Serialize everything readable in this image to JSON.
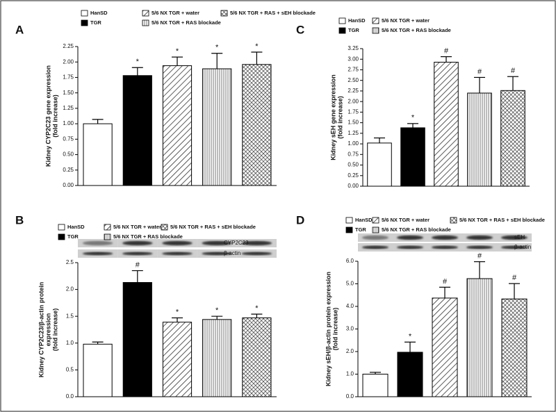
{
  "chart_data": [
    {
      "type": "bar",
      "panel": "A",
      "ylabel": [
        "Kidney CYP2C23 gene expression",
        "(fold increase)"
      ],
      "ylim": [
        0,
        2.25
      ],
      "yticks": [
        {
          "value": 0,
          "label": "0.00"
        },
        {
          "value": 0.25,
          "label": "0.25"
        },
        {
          "value": 0.5,
          "label": "0.50"
        },
        {
          "value": 0.75,
          "label": "0.75"
        },
        {
          "value": 1,
          "label": "1.00"
        },
        {
          "value": 1.25,
          "label": "1.25"
        },
        {
          "value": 1.5,
          "label": "1.50"
        },
        {
          "value": 1.75,
          "label": "1.75"
        },
        {
          "value": 2,
          "label": "2.00"
        },
        {
          "value": 2.25,
          "label": "2.25"
        }
      ],
      "series": [
        {
          "name": "HanSD",
          "pattern": "none",
          "values": [
            1.0
          ],
          "errors": [
            0.07
          ]
        },
        {
          "name": "TGR",
          "pattern": "solid",
          "values": [
            1.78
          ],
          "errors": [
            0.13
          ],
          "annotation": "*"
        },
        {
          "name": "5/6 NX TGR + water",
          "pattern": "diagonal",
          "values": [
            1.94
          ],
          "errors": [
            0.14
          ],
          "annotation": "*"
        },
        {
          "name": "5/6 NX TGR + RAS blockade",
          "pattern": "vertical",
          "values": [
            1.89
          ],
          "errors": [
            0.25
          ],
          "annotation": "*"
        },
        {
          "name": "5/6 NX TGR + RAS + sEH blockade",
          "pattern": "crosshatch",
          "values": [
            1.96
          ],
          "errors": [
            0.2
          ],
          "annotation": "*"
        }
      ]
    },
    {
      "type": "bar",
      "panel": "B",
      "ylabel": [
        "Kidney CYP2C23/β-actin protein",
        "expression",
        "(fold increase)"
      ],
      "blot_labels": [
        "CYP2C23",
        "β-actin"
      ],
      "ylim": [
        0,
        2.5
      ],
      "yticks": [
        {
          "value": 0,
          "label": "0.0"
        },
        {
          "value": 0.5,
          "label": "0.5"
        },
        {
          "value": 1,
          "label": "1.0"
        },
        {
          "value": 1.5,
          "label": "1.5"
        },
        {
          "value": 2,
          "label": "2.0"
        },
        {
          "value": 2.5,
          "label": "2.5"
        }
      ],
      "series": [
        {
          "name": "HanSD",
          "pattern": "none",
          "values": [
            0.98
          ],
          "errors": [
            0.04
          ]
        },
        {
          "name": "TGR",
          "pattern": "solid",
          "values": [
            2.13
          ],
          "errors": [
            0.22
          ],
          "annotation": "#"
        },
        {
          "name": "5/6 NX TGR + water",
          "pattern": "diagonal",
          "values": [
            1.39
          ],
          "errors": [
            0.08
          ],
          "annotation": "*"
        },
        {
          "name": "5/6 NX TGR + RAS blockade",
          "pattern": "vertical",
          "values": [
            1.44
          ],
          "errors": [
            0.06
          ],
          "annotation": "*"
        },
        {
          "name": "5/6 NX TGR + RAS + sEH blockade",
          "pattern": "crosshatch",
          "values": [
            1.47
          ],
          "errors": [
            0.07
          ],
          "annotation": "*"
        }
      ]
    },
    {
      "type": "bar",
      "panel": "C",
      "ylabel": [
        "Kidney sEH gene expression",
        "(fold increase)"
      ],
      "ylim": [
        0,
        3.25
      ],
      "yticks": [
        {
          "value": 0,
          "label": "0.00"
        },
        {
          "value": 0.25,
          "label": "0.25"
        },
        {
          "value": 0.5,
          "label": "0.50"
        },
        {
          "value": 0.75,
          "label": "0.75"
        },
        {
          "value": 1,
          "label": "1.00"
        },
        {
          "value": 1.25,
          "label": "1.25"
        },
        {
          "value": 1.5,
          "label": "1.50"
        },
        {
          "value": 1.75,
          "label": "1.75"
        },
        {
          "value": 2,
          "label": "2.00"
        },
        {
          "value": 2.25,
          "label": "2.25"
        },
        {
          "value": 2.5,
          "label": "2.50"
        },
        {
          "value": 2.75,
          "label": "2.75"
        },
        {
          "value": 3,
          "label": "3.00"
        },
        {
          "value": 3.25,
          "label": "3.25"
        }
      ],
      "series": [
        {
          "name": "HanSD",
          "pattern": "none",
          "values": [
            1.02
          ],
          "errors": [
            0.12
          ]
        },
        {
          "name": "TGR",
          "pattern": "solid",
          "values": [
            1.38
          ],
          "errors": [
            0.1
          ],
          "annotation": "*"
        },
        {
          "name": "5/6 NX TGR + water",
          "pattern": "diagonal",
          "values": [
            2.93
          ],
          "errors": [
            0.13
          ],
          "annotation": "#"
        },
        {
          "name": "5/6 NX TGR + RAS blockade",
          "pattern": "vertical",
          "values": [
            2.2
          ],
          "errors": [
            0.37
          ],
          "annotation": "#"
        },
        {
          "pattern": "crosshatch",
          "values": [
            2.26
          ],
          "errors": [
            0.33
          ],
          "annotation": "#"
        }
      ]
    },
    {
      "type": "bar",
      "panel": "D",
      "ylabel": [
        "Kidney sEH/β-actin protein expression",
        "(fold increase)"
      ],
      "blot_labels": [
        "sEH",
        "β-actin"
      ],
      "ylim": [
        0,
        6
      ],
      "yticks": [
        {
          "value": 0,
          "label": "0.0"
        },
        {
          "value": 1,
          "label": "1.0"
        },
        {
          "value": 2,
          "label": "2.0"
        },
        {
          "value": 3,
          "label": "3.0"
        },
        {
          "value": 4,
          "label": "4.0"
        },
        {
          "value": 5,
          "label": "5.0"
        },
        {
          "value": 6,
          "label": "6.0"
        }
      ],
      "series": [
        {
          "name": "HanSD",
          "pattern": "none",
          "values": [
            1.0
          ],
          "errors": [
            0.08
          ]
        },
        {
          "name": "TGR",
          "pattern": "solid",
          "values": [
            1.97
          ],
          "errors": [
            0.45
          ],
          "annotation": "*"
        },
        {
          "name": "5/6 NX TGR + water",
          "pattern": "diagonal",
          "values": [
            4.37
          ],
          "errors": [
            0.48
          ],
          "annotation": "#"
        },
        {
          "name": "5/6 NX TGR + RAS blockade",
          "pattern": "vertical",
          "values": [
            5.23
          ],
          "errors": [
            0.75
          ],
          "annotation": "#"
        },
        {
          "name": "5/6 NX TGR + RAS + sEH blockade",
          "pattern": "crosshatch",
          "values": [
            4.33
          ],
          "errors": [
            0.68
          ],
          "annotation": "#"
        }
      ]
    }
  ]
}
